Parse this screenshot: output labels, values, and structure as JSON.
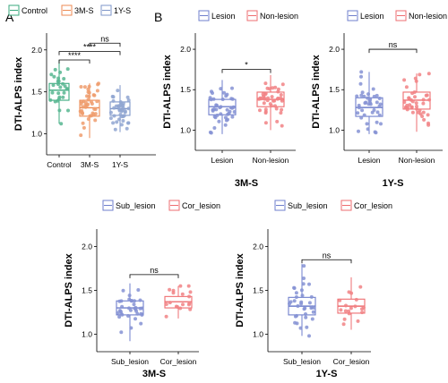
{
  "figure": {
    "panel_labels": [
      "A",
      "B"
    ],
    "significance": {
      "four_star": "****",
      "one_star": "*",
      "ns": "ns"
    }
  },
  "colors": {
    "control": "#39a97e",
    "three_m": "#ec8a53",
    "one_y": "#7e96c9",
    "lesion": "#6f7fcc",
    "non_lesion": "#ee6d70",
    "axis": "#000000"
  },
  "chart_data": [
    {
      "id": "A",
      "type": "box",
      "ylabel": "DTI-ALPS index",
      "xlabel": "",
      "title": "",
      "ylim": [
        0.75,
        2.2
      ],
      "yticks": [
        1.0,
        1.5,
        2.0
      ],
      "legend": {
        "placement": "top-left",
        "items": [
          {
            "name": "Control",
            "color": "#39a97e"
          },
          {
            "name": "3M-S",
            "color": "#ec8a53"
          },
          {
            "name": "1Y-S",
            "color": "#7e96c9"
          }
        ]
      },
      "categories": [
        "Control",
        "3M-S",
        "1Y-S"
      ],
      "series": [
        {
          "name": "Control",
          "color": "#39a97e",
          "box": {
            "min": 1.12,
            "q1": 1.4,
            "median": 1.52,
            "q3": 1.6,
            "max": 1.88
          },
          "n": 28
        },
        {
          "name": "3M-S",
          "color": "#ec8a53",
          "box": {
            "min": 0.95,
            "q1": 1.21,
            "median": 1.31,
            "q3": 1.4,
            "max": 1.6
          },
          "n": 42
        },
        {
          "name": "1Y-S",
          "color": "#7e96c9",
          "box": {
            "min": 1.02,
            "q1": 1.22,
            "median": 1.3,
            "q3": 1.38,
            "max": 1.58
          },
          "n": 40
        }
      ],
      "comparisons": [
        {
          "from": 0,
          "to": 1,
          "label": "****",
          "y": 1.88
        },
        {
          "from": 0,
          "to": 2,
          "label": "****",
          "y": 1.98
        },
        {
          "from": 1,
          "to": 2,
          "label": "ns",
          "y": 2.08
        }
      ]
    },
    {
      "id": "B-3M",
      "type": "box",
      "ylabel": "DTI-ALPS index",
      "xlabel": "3M-S",
      "title": "",
      "ylim": [
        0.75,
        2.2
      ],
      "yticks": [
        1.0,
        1.5,
        2.0
      ],
      "legend": {
        "placement": "top",
        "items": [
          {
            "name": "Lesion",
            "color": "#6f7fcc"
          },
          {
            "name": "Non-lesion",
            "color": "#ee6d70"
          }
        ]
      },
      "categories": [
        "Lesion",
        "Non-lesion"
      ],
      "series": [
        {
          "name": "Lesion",
          "color": "#6f7fcc",
          "box": {
            "min": 0.95,
            "q1": 1.19,
            "median": 1.29,
            "q3": 1.38,
            "max": 1.62
          },
          "n": 42
        },
        {
          "name": "Non-lesion",
          "color": "#ee6d70",
          "box": {
            "min": 1.0,
            "q1": 1.29,
            "median": 1.38,
            "q3": 1.47,
            "max": 1.68
          },
          "n": 42
        }
      ],
      "comparisons": [
        {
          "from": 0,
          "to": 1,
          "label": "*",
          "y": 1.75
        }
      ]
    },
    {
      "id": "B-1Y",
      "type": "box",
      "ylabel": "DTI-ALPS index",
      "xlabel": "1Y-S",
      "title": "",
      "ylim": [
        0.75,
        2.2
      ],
      "yticks": [
        1.0,
        1.5,
        2.0
      ],
      "legend": {
        "placement": "top",
        "items": [
          {
            "name": "Lesion",
            "color": "#6f7fcc"
          },
          {
            "name": "Non-lesion",
            "color": "#ee6d70"
          }
        ]
      },
      "categories": [
        "Lesion",
        "Non-lesion"
      ],
      "series": [
        {
          "name": "Lesion",
          "color": "#6f7fcc",
          "box": {
            "min": 0.95,
            "q1": 1.17,
            "median": 1.28,
            "q3": 1.4,
            "max": 1.72
          },
          "n": 40
        },
        {
          "name": "Non-lesion",
          "color": "#ee6d70",
          "box": {
            "min": 0.98,
            "q1": 1.26,
            "median": 1.37,
            "q3": 1.47,
            "max": 1.7
          },
          "n": 40
        }
      ],
      "comparisons": [
        {
          "from": 0,
          "to": 1,
          "label": "ns",
          "y": 2.0
        }
      ]
    },
    {
      "id": "C-3M",
      "type": "box",
      "ylabel": "DTI-ALPS index",
      "xlabel": "3M-S",
      "title": "",
      "ylim": [
        0.8,
        2.2
      ],
      "yticks": [
        1.0,
        1.5,
        2.0
      ],
      "legend": {
        "placement": "top",
        "items": [
          {
            "name": "Sub_lesion",
            "color": "#6f7fcc"
          },
          {
            "name": "Cor_lesion",
            "color": "#ee6d70"
          }
        ]
      },
      "categories": [
        "Sub_lesion",
        "Cor_lesion"
      ],
      "series": [
        {
          "name": "Sub_lesion",
          "color": "#6f7fcc",
          "box": {
            "min": 0.92,
            "q1": 1.22,
            "median": 1.3,
            "q3": 1.38,
            "max": 1.58
          },
          "n": 34
        },
        {
          "name": "Cor_lesion",
          "color": "#ee6d70",
          "box": {
            "min": 1.18,
            "q1": 1.3,
            "median": 1.37,
            "q3": 1.43,
            "max": 1.55
          },
          "n": 18
        }
      ],
      "comparisons": [
        {
          "from": 0,
          "to": 1,
          "label": "ns",
          "y": 1.68
        }
      ]
    },
    {
      "id": "C-1Y",
      "type": "box",
      "ylabel": "DTI-ALPS index",
      "xlabel": "1Y-S",
      "title": "",
      "ylim": [
        0.8,
        2.2
      ],
      "yticks": [
        1.0,
        1.5,
        2.0
      ],
      "legend": {
        "placement": "top",
        "items": [
          {
            "name": "Sub_lesion",
            "color": "#6f7fcc"
          },
          {
            "name": "Cor_lesion",
            "color": "#ee6d70"
          }
        ]
      },
      "categories": [
        "Sub_lesion",
        "Cor_lesion"
      ],
      "series": [
        {
          "name": "Sub_lesion",
          "color": "#6f7fcc",
          "box": {
            "min": 0.98,
            "q1": 1.22,
            "median": 1.32,
            "q3": 1.42,
            "max": 1.8
          },
          "n": 34
        },
        {
          "name": "Cor_lesion",
          "color": "#ee6d70",
          "box": {
            "min": 1.05,
            "q1": 1.24,
            "median": 1.32,
            "q3": 1.4,
            "max": 1.65
          },
          "n": 18
        }
      ],
      "comparisons": [
        {
          "from": 0,
          "to": 1,
          "label": "ns",
          "y": 1.85
        }
      ]
    }
  ]
}
